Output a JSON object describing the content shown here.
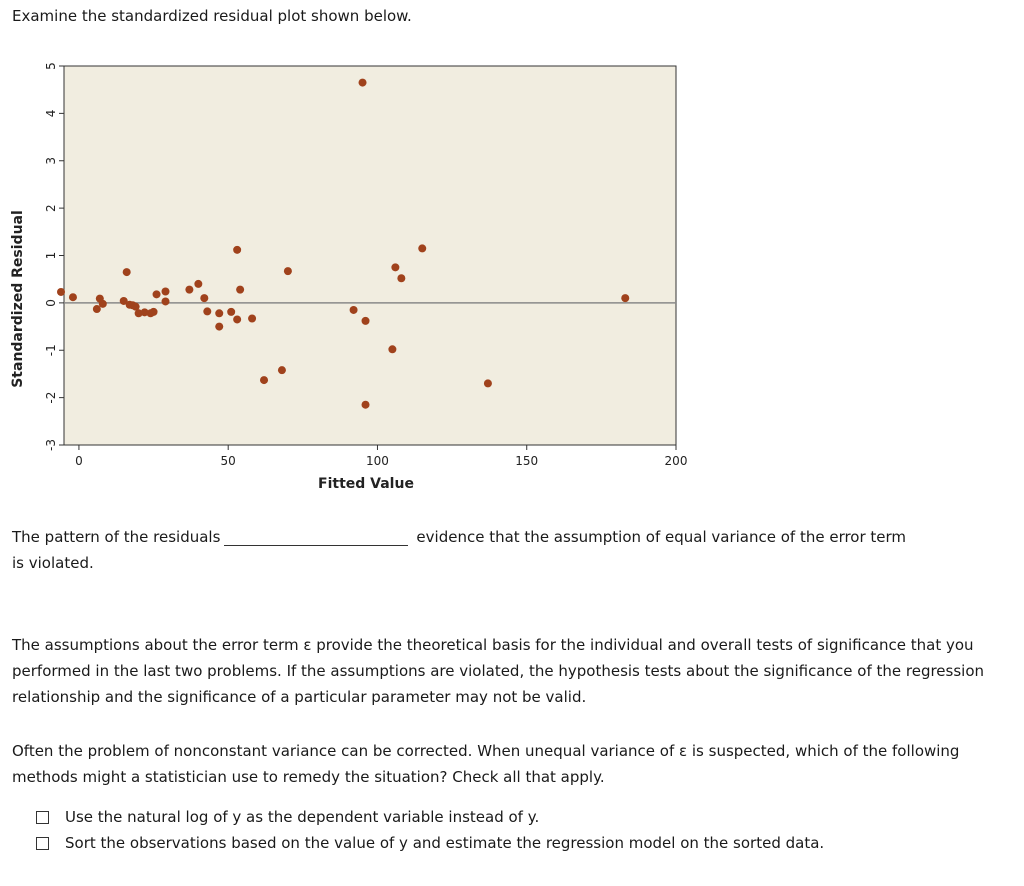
{
  "intro": "Examine the standardized residual plot shown below.",
  "chart_data": {
    "type": "scatter",
    "xlabel": "Fitted Value",
    "ylabel": "Standardized Residual",
    "xlim": [
      -5,
      200
    ],
    "ylim": [
      -3,
      5
    ],
    "xticks": [
      "0",
      "50",
      "100",
      "150",
      "200"
    ],
    "yticks": [
      "-3",
      "-2",
      "-1",
      "0",
      "1",
      "2",
      "3",
      "4",
      "5"
    ],
    "reference_line": 0,
    "marker_color": "#a0421c",
    "background_color": "#f1ede0",
    "points": [
      {
        "x": -6,
        "y": 0.23
      },
      {
        "x": -2,
        "y": 0.12
      },
      {
        "x": 6,
        "y": -0.13
      },
      {
        "x": 7,
        "y": 0.09
      },
      {
        "x": 8,
        "y": -0.02
      },
      {
        "x": 15,
        "y": 0.04
      },
      {
        "x": 16,
        "y": 0.65
      },
      {
        "x": 17,
        "y": -0.04
      },
      {
        "x": 18,
        "y": -0.05
      },
      {
        "x": 19,
        "y": -0.08
      },
      {
        "x": 20,
        "y": -0.22
      },
      {
        "x": 22,
        "y": -0.2
      },
      {
        "x": 24,
        "y": -0.22
      },
      {
        "x": 25,
        "y": -0.19
      },
      {
        "x": 26,
        "y": 0.18
      },
      {
        "x": 29,
        "y": 0.03
      },
      {
        "x": 29,
        "y": 0.24
      },
      {
        "x": 37,
        "y": 0.28
      },
      {
        "x": 40,
        "y": 0.4
      },
      {
        "x": 42,
        "y": 0.1
      },
      {
        "x": 43,
        "y": -0.18
      },
      {
        "x": 47,
        "y": -0.22
      },
      {
        "x": 47,
        "y": -0.5
      },
      {
        "x": 51,
        "y": -0.19
      },
      {
        "x": 53,
        "y": 1.12
      },
      {
        "x": 53,
        "y": -0.35
      },
      {
        "x": 54,
        "y": 0.28
      },
      {
        "x": 58,
        "y": -0.33
      },
      {
        "x": 62,
        "y": -1.63
      },
      {
        "x": 68,
        "y": -1.42
      },
      {
        "x": 70,
        "y": 0.67
      },
      {
        "x": 92,
        "y": -0.15
      },
      {
        "x": 95,
        "y": 4.65
      },
      {
        "x": 96,
        "y": -0.38
      },
      {
        "x": 96,
        "y": -2.15
      },
      {
        "x": 105,
        "y": -0.98
      },
      {
        "x": 106,
        "y": 0.75
      },
      {
        "x": 108,
        "y": 0.52
      },
      {
        "x": 115,
        "y": 1.15
      },
      {
        "x": 137,
        "y": -1.7
      },
      {
        "x": 183,
        "y": 0.1
      }
    ]
  },
  "question1": {
    "before": "The pattern of the residuals",
    "after": "evidence that the assumption of equal variance of the error term",
    "continued": "is violated."
  },
  "paragraph1": "The assumptions about the error term ε provide the theoretical basis for the individual and overall tests of significance that you performed in the last two problems. If the assumptions are violated, the hypothesis tests about the significance of the regression relationship and the significance of a particular parameter may not be valid.",
  "paragraph2": "Often the problem of nonconstant variance can be corrected. When unequal variance of ε is suspected, which of the following methods might a statistician use to remedy the situation? Check all that apply.",
  "options": [
    {
      "label": "Use the natural log of y as the dependent variable instead of y."
    },
    {
      "label": "Sort the observations based on the value of y and estimate the regression model on the sorted data."
    }
  ]
}
